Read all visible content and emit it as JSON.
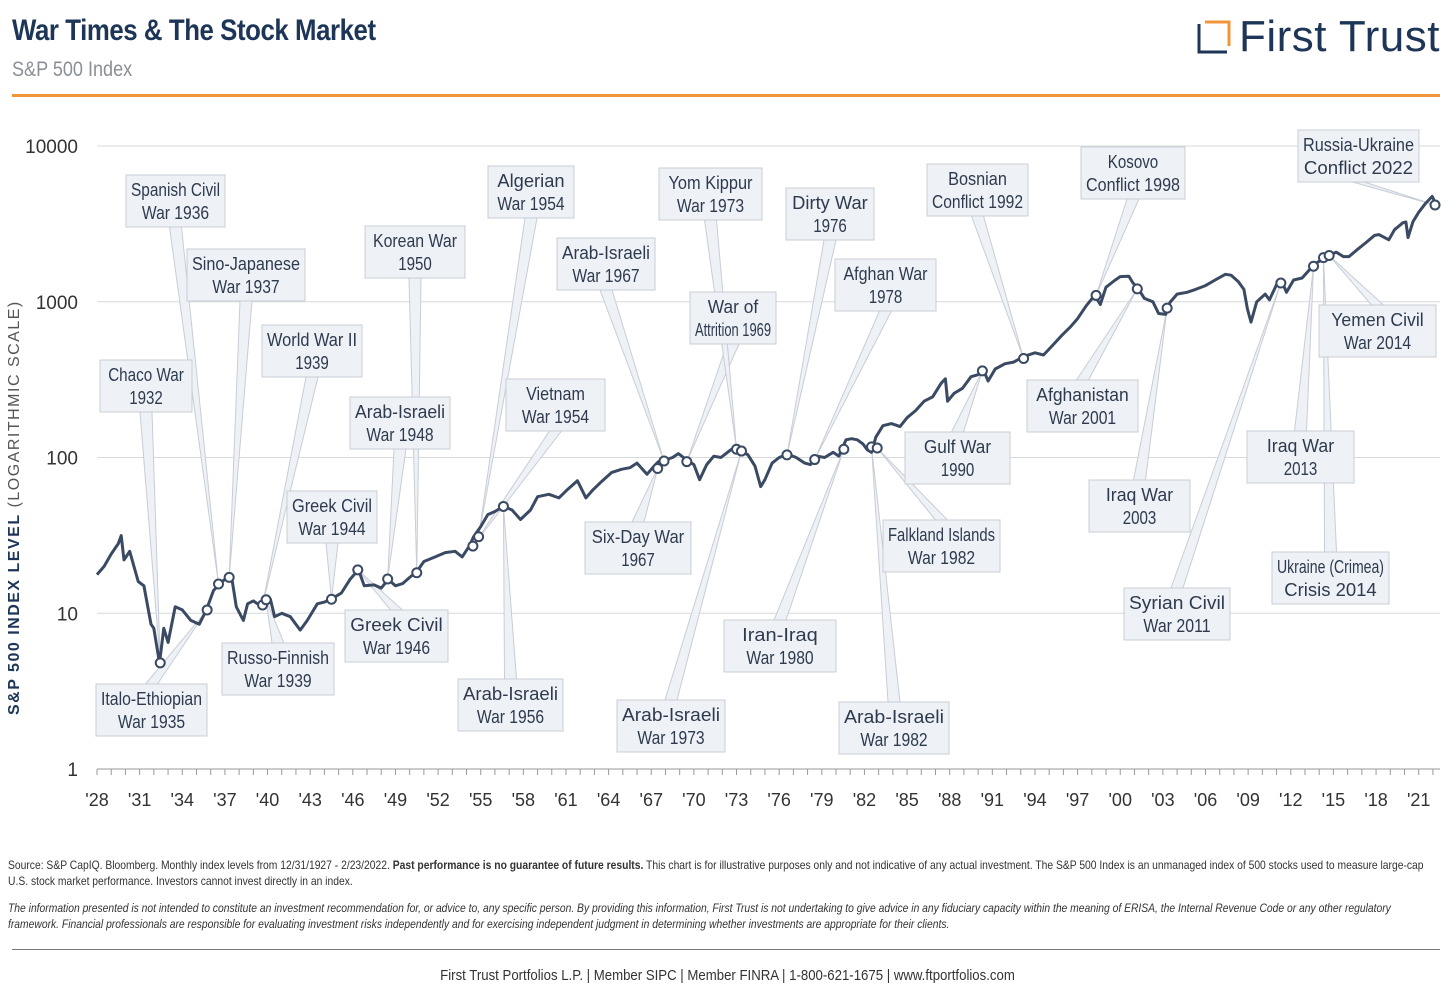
{
  "header": {
    "title": "War Times & The Stock Market",
    "subtitle": "S&P 500 Index",
    "logo_text": "First Trust",
    "accent_color": "#f0953a",
    "brand_color": "#1d3557"
  },
  "y_axis_title": {
    "bold": "S&P 500 INDEX LEVEL",
    "unit": "(LOGARITHMIC SCALE)"
  },
  "chart_data": {
    "type": "line",
    "title": "War Times & The Stock Market",
    "subtitle": "S&P 500 Index",
    "xlabel": "",
    "ylabel": "S&P 500 INDEX LEVEL (LOGARITHMIC SCALE)",
    "y_scale": "log",
    "ylim": [
      1,
      10000
    ],
    "xlim": [
      1928,
      2022.5
    ],
    "y_ticks": [
      1,
      10,
      100,
      1000,
      10000
    ],
    "y_tick_labels": [
      "1",
      "10",
      "100",
      "1000",
      "10000"
    ],
    "x_ticks": [
      1928,
      1931,
      1934,
      1937,
      1940,
      1943,
      1946,
      1949,
      1952,
      1955,
      1958,
      1961,
      1964,
      1967,
      1970,
      1973,
      1976,
      1979,
      1982,
      1985,
      1988,
      1991,
      1994,
      1997,
      2000,
      2003,
      2006,
      2009,
      2012,
      2015,
      2018,
      2021
    ],
    "x_tick_labels": [
      "'28",
      "'31",
      "'34",
      "'37",
      "'40",
      "'43",
      "'46",
      "'49",
      "'52",
      "'55",
      "'58",
      "'61",
      "'64",
      "'67",
      "'70",
      "'73",
      "'76",
      "'79",
      "'82",
      "'85",
      "'88",
      "'91",
      "'94",
      "'97",
      "'00",
      "'03",
      "'06",
      "'09",
      "'12",
      "'15",
      "'18",
      "'21"
    ],
    "grid": true,
    "line_color": "#3a4a63",
    "series": [
      {
        "points": [
          [
            1928.0,
            17.7
          ],
          [
            1928.5,
            20
          ],
          [
            1929.0,
            24
          ],
          [
            1929.5,
            28
          ],
          [
            1929.7,
            31.5
          ],
          [
            1929.9,
            22
          ],
          [
            1930.3,
            25
          ],
          [
            1930.9,
            16
          ],
          [
            1931.3,
            15
          ],
          [
            1931.8,
            8.5
          ],
          [
            1932.0,
            8
          ],
          [
            1932.4,
            4.8
          ],
          [
            1932.7,
            8
          ],
          [
            1933.0,
            6.5
          ],
          [
            1933.5,
            11
          ],
          [
            1934.0,
            10.5
          ],
          [
            1934.6,
            9
          ],
          [
            1935.2,
            8.5
          ],
          [
            1935.7,
            10.5
          ],
          [
            1936.2,
            14
          ],
          [
            1936.8,
            16
          ],
          [
            1937.2,
            17
          ],
          [
            1937.5,
            16.5
          ],
          [
            1937.8,
            11
          ],
          [
            1938.3,
            9
          ],
          [
            1938.6,
            11.5
          ],
          [
            1939.0,
            12
          ],
          [
            1939.6,
            11
          ],
          [
            1940.2,
            12.3
          ],
          [
            1940.5,
            9.5
          ],
          [
            1941.0,
            10
          ],
          [
            1941.6,
            9.5
          ],
          [
            1942.3,
            7.8
          ],
          [
            1942.8,
            9
          ],
          [
            1943.5,
            11.5
          ],
          [
            1944.0,
            11.8
          ],
          [
            1944.6,
            12.5
          ],
          [
            1945.2,
            13.5
          ],
          [
            1945.8,
            16.5
          ],
          [
            1946.4,
            19
          ],
          [
            1946.8,
            15
          ],
          [
            1947.5,
            15.2
          ],
          [
            1948.0,
            14.5
          ],
          [
            1948.5,
            16.5
          ],
          [
            1949.0,
            15
          ],
          [
            1949.5,
            15.5
          ],
          [
            1950.0,
            17
          ],
          [
            1950.5,
            18.5
          ],
          [
            1951.0,
            21.5
          ],
          [
            1951.8,
            23
          ],
          [
            1952.5,
            24.5
          ],
          [
            1953.2,
            25
          ],
          [
            1953.7,
            23
          ],
          [
            1954.2,
            27
          ],
          [
            1954.5,
            31
          ],
          [
            1955.0,
            36
          ],
          [
            1955.5,
            43
          ],
          [
            1956.0,
            45
          ],
          [
            1956.6,
            48.5
          ],
          [
            1957.2,
            46
          ],
          [
            1957.8,
            40
          ],
          [
            1958.5,
            46
          ],
          [
            1959.0,
            56
          ],
          [
            1959.8,
            58
          ],
          [
            1960.5,
            55
          ],
          [
            1961.0,
            61
          ],
          [
            1961.8,
            71
          ],
          [
            1962.4,
            55
          ],
          [
            1962.9,
            62
          ],
          [
            1963.5,
            70
          ],
          [
            1964.2,
            80
          ],
          [
            1964.9,
            84
          ],
          [
            1965.5,
            86
          ],
          [
            1966.0,
            92
          ],
          [
            1966.7,
            78
          ],
          [
            1967.2,
            88
          ],
          [
            1967.5,
            94
          ],
          [
            1967.9,
            96
          ],
          [
            1968.5,
            100
          ],
          [
            1968.9,
            106
          ],
          [
            1969.4,
            98
          ],
          [
            1970.0,
            90
          ],
          [
            1970.4,
            72
          ],
          [
            1970.9,
            90
          ],
          [
            1971.4,
            102
          ],
          [
            1971.9,
            100
          ],
          [
            1972.6,
            112
          ],
          [
            1972.95,
            117
          ],
          [
            1973.2,
            112
          ],
          [
            1973.8,
            104
          ],
          [
            1974.3,
            88
          ],
          [
            1974.7,
            65
          ],
          [
            1975.0,
            72
          ],
          [
            1975.5,
            92
          ],
          [
            1976.0,
            100
          ],
          [
            1976.6,
            105
          ],
          [
            1977.2,
            100
          ],
          [
            1977.8,
            92
          ],
          [
            1978.2,
            90
          ],
          [
            1978.7,
            102
          ],
          [
            1979.2,
            100
          ],
          [
            1979.8,
            108
          ],
          [
            1980.2,
            102
          ],
          [
            1980.7,
            130
          ],
          [
            1981.1,
            132
          ],
          [
            1981.5,
            130
          ],
          [
            1981.9,
            122
          ],
          [
            1982.2,
            112
          ],
          [
            1982.5,
            108
          ],
          [
            1982.8,
            135
          ],
          [
            1983.3,
            160
          ],
          [
            1983.9,
            165
          ],
          [
            1984.5,
            158
          ],
          [
            1985.0,
            180
          ],
          [
            1985.6,
            200
          ],
          [
            1986.2,
            230
          ],
          [
            1986.8,
            245
          ],
          [
            1987.4,
            300
          ],
          [
            1987.7,
            320
          ],
          [
            1987.85,
            230
          ],
          [
            1988.3,
            258
          ],
          [
            1988.9,
            278
          ],
          [
            1989.5,
            330
          ],
          [
            1990.0,
            340
          ],
          [
            1990.4,
            360
          ],
          [
            1990.7,
            310
          ],
          [
            1991.2,
            370
          ],
          [
            1991.9,
            400
          ],
          [
            1992.5,
            410
          ],
          [
            1993.2,
            445
          ],
          [
            1994.0,
            470
          ],
          [
            1994.6,
            455
          ],
          [
            1995.2,
            520
          ],
          [
            1995.9,
            610
          ],
          [
            1996.5,
            690
          ],
          [
            1997.0,
            780
          ],
          [
            1997.6,
            940
          ],
          [
            1998.2,
            1100
          ],
          [
            1998.6,
            960
          ],
          [
            1999.0,
            1240
          ],
          [
            1999.6,
            1370
          ],
          [
            2000.0,
            1450
          ],
          [
            2000.6,
            1460
          ],
          [
            2000.9,
            1320
          ],
          [
            2001.3,
            1200
          ],
          [
            2001.7,
            1050
          ],
          [
            2002.3,
            1000
          ],
          [
            2002.7,
            840
          ],
          [
            2003.2,
            830
          ],
          [
            2003.5,
            990
          ],
          [
            2004.0,
            1120
          ],
          [
            2004.7,
            1150
          ],
          [
            2005.3,
            1200
          ],
          [
            2006.0,
            1270
          ],
          [
            2006.8,
            1400
          ],
          [
            2007.4,
            1500
          ],
          [
            2007.8,
            1480
          ],
          [
            2008.3,
            1350
          ],
          [
            2008.7,
            1200
          ],
          [
            2008.95,
            900
          ],
          [
            2009.2,
            740
          ],
          [
            2009.6,
            1000
          ],
          [
            2010.2,
            1120
          ],
          [
            2010.5,
            1030
          ],
          [
            2011.0,
            1290
          ],
          [
            2011.4,
            1330
          ],
          [
            2011.7,
            1150
          ],
          [
            2012.2,
            1380
          ],
          [
            2012.8,
            1420
          ],
          [
            2013.3,
            1600
          ],
          [
            2013.9,
            1800
          ],
          [
            2014.2,
            1850
          ],
          [
            2014.6,
            1980
          ],
          [
            2015.2,
            2080
          ],
          [
            2015.7,
            1950
          ],
          [
            2016.1,
            1950
          ],
          [
            2016.7,
            2170
          ],
          [
            2017.3,
            2400
          ],
          [
            2017.9,
            2670
          ],
          [
            2018.2,
            2700
          ],
          [
            2018.9,
            2500
          ],
          [
            2019.3,
            2900
          ],
          [
            2019.9,
            3220
          ],
          [
            2020.1,
            3250
          ],
          [
            2020.25,
            2580
          ],
          [
            2020.6,
            3270
          ],
          [
            2021.0,
            3750
          ],
          [
            2021.5,
            4300
          ],
          [
            2021.95,
            4750
          ],
          [
            2022.15,
            4370
          ]
        ]
      }
    ],
    "annotations": [
      {
        "label": [
          "Chaco War",
          "1932"
        ],
        "x": 1932.45,
        "y": 4.8
      },
      {
        "label": [
          "Italo-Ethiopian",
          "War 1935"
        ],
        "x": 1935.75,
        "y": 10.5
      },
      {
        "label": [
          "Spanish Civil",
          "War 1936"
        ],
        "x": 1936.55,
        "y": 15.4
      },
      {
        "label": [
          "Sino-Japanese",
          "War 1937"
        ],
        "x": 1937.3,
        "y": 17
      },
      {
        "label": [
          "World War II",
          "1939"
        ],
        "x": 1939.65,
        "y": 11.3
      },
      {
        "label": [
          "Russo-Finnish",
          "War 1939"
        ],
        "x": 1939.9,
        "y": 12.2
      },
      {
        "label": [
          "Greek Civil",
          "War 1944"
        ],
        "x": 1944.5,
        "y": 12.3
      },
      {
        "label": [
          "Greek Civil",
          "War 1946"
        ],
        "x": 1946.35,
        "y": 19
      },
      {
        "label": [
          "Arab-Israeli",
          "War 1948"
        ],
        "x": 1948.45,
        "y": 16.6
      },
      {
        "label": [
          "Korean War",
          "1950"
        ],
        "x": 1950.5,
        "y": 18.2
      },
      {
        "label": [
          "Algerian",
          "War 1954"
        ],
        "x": 1954.85,
        "y": 31
      },
      {
        "label": [
          "Vietnam",
          "War 1954"
        ],
        "x": 1954.45,
        "y": 27
      },
      {
        "label": [
          "Arab-Israeli",
          "War 1956"
        ],
        "x": 1956.6,
        "y": 48.5
      },
      {
        "label": [
          "Six-Day War",
          "1967"
        ],
        "x": 1967.45,
        "y": 85
      },
      {
        "label": [
          "Arab-Israeli",
          "War 1967"
        ],
        "x": 1967.9,
        "y": 95
      },
      {
        "label": [
          "War of",
          "Attrition 1969"
        ],
        "x": 1969.5,
        "y": 94
      },
      {
        "label": [
          "Yom Kippur",
          "War 1973"
        ],
        "x": 1973.0,
        "y": 113
      },
      {
        "label": [
          "Arab-Israeli",
          "War 1973"
        ],
        "x": 1973.35,
        "y": 110
      },
      {
        "label": [
          "Dirty War",
          "1976"
        ],
        "x": 1976.55,
        "y": 104
      },
      {
        "label": [
          "Afghan War",
          "1978"
        ],
        "x": 1978.5,
        "y": 97
      },
      {
        "label": [
          "Iran-Iraq",
          "War 1980"
        ],
        "x": 1980.55,
        "y": 113
      },
      {
        "label": [
          "Arab-Israeli",
          "War 1982"
        ],
        "x": 1982.5,
        "y": 117
      },
      {
        "label": [
          "Falkland Islands",
          "War 1982"
        ],
        "x": 1982.9,
        "y": 115
      },
      {
        "label": [
          "Gulf War",
          "1990"
        ],
        "x": 1990.3,
        "y": 360
      },
      {
        "label": [
          "Bosnian",
          "Conflict 1992"
        ],
        "x": 1993.2,
        "y": 432
      },
      {
        "label": [
          "Kosovo",
          "Conflict 1998"
        ],
        "x": 1998.3,
        "y": 1098
      },
      {
        "label": [
          "Afghanistan",
          "War 2001"
        ],
        "x": 2001.2,
        "y": 1210
      },
      {
        "label": [
          "Iraq War",
          "2003"
        ],
        "x": 2003.3,
        "y": 910
      },
      {
        "label": [
          "Syrian Civil",
          "War 2011"
        ],
        "x": 2011.3,
        "y": 1320
      },
      {
        "label": [
          "Iraq War",
          "2013"
        ],
        "x": 2013.6,
        "y": 1690
      },
      {
        "label": [
          "Ukraine (Crimea)",
          "Crisis 2014"
        ],
        "x": 2014.3,
        "y": 1920
      },
      {
        "label": [
          "Yemen Civil",
          "War 2014"
        ],
        "x": 2014.7,
        "y": 1980
      },
      {
        "label": [
          "Russia-Ukraine",
          "Conflict 2022"
        ],
        "x": 2022.15,
        "y": 4180
      }
    ]
  },
  "footer": {
    "source_prefix": "Source: S&P CapIQ. Bloomberg. Monthly index levels from 12/31/1927 - 2/23/2022.",
    "source_bold": "Past performance is no guarantee of future results.",
    "source_suffix": "This chart is for illustrative purposes only and not indicative of any actual investment. The S&P 500 Index is an unmanaged index of 500 stocks used to measure large-cap U.S. stock market performance. Investors cannot invest directly in an index.",
    "disclaimer": "The information presented is not intended to constitute an investment recommendation for, or advice to, any specific person. By providing this information, First Trust is not undertaking to give advice in any fiduciary capacity within the meaning of ERISA, the Internal Revenue Code or any other regulatory framework. Financial professionals are responsible for evaluating investment risks independently and for exercising independent judgment in determining whether investments are appropriate for their clients.",
    "contact": "First Trust Portfolios L.P. | Member SIPC | Member FINRA | 1-800-621-1675 | www.ftportfolios.com"
  }
}
